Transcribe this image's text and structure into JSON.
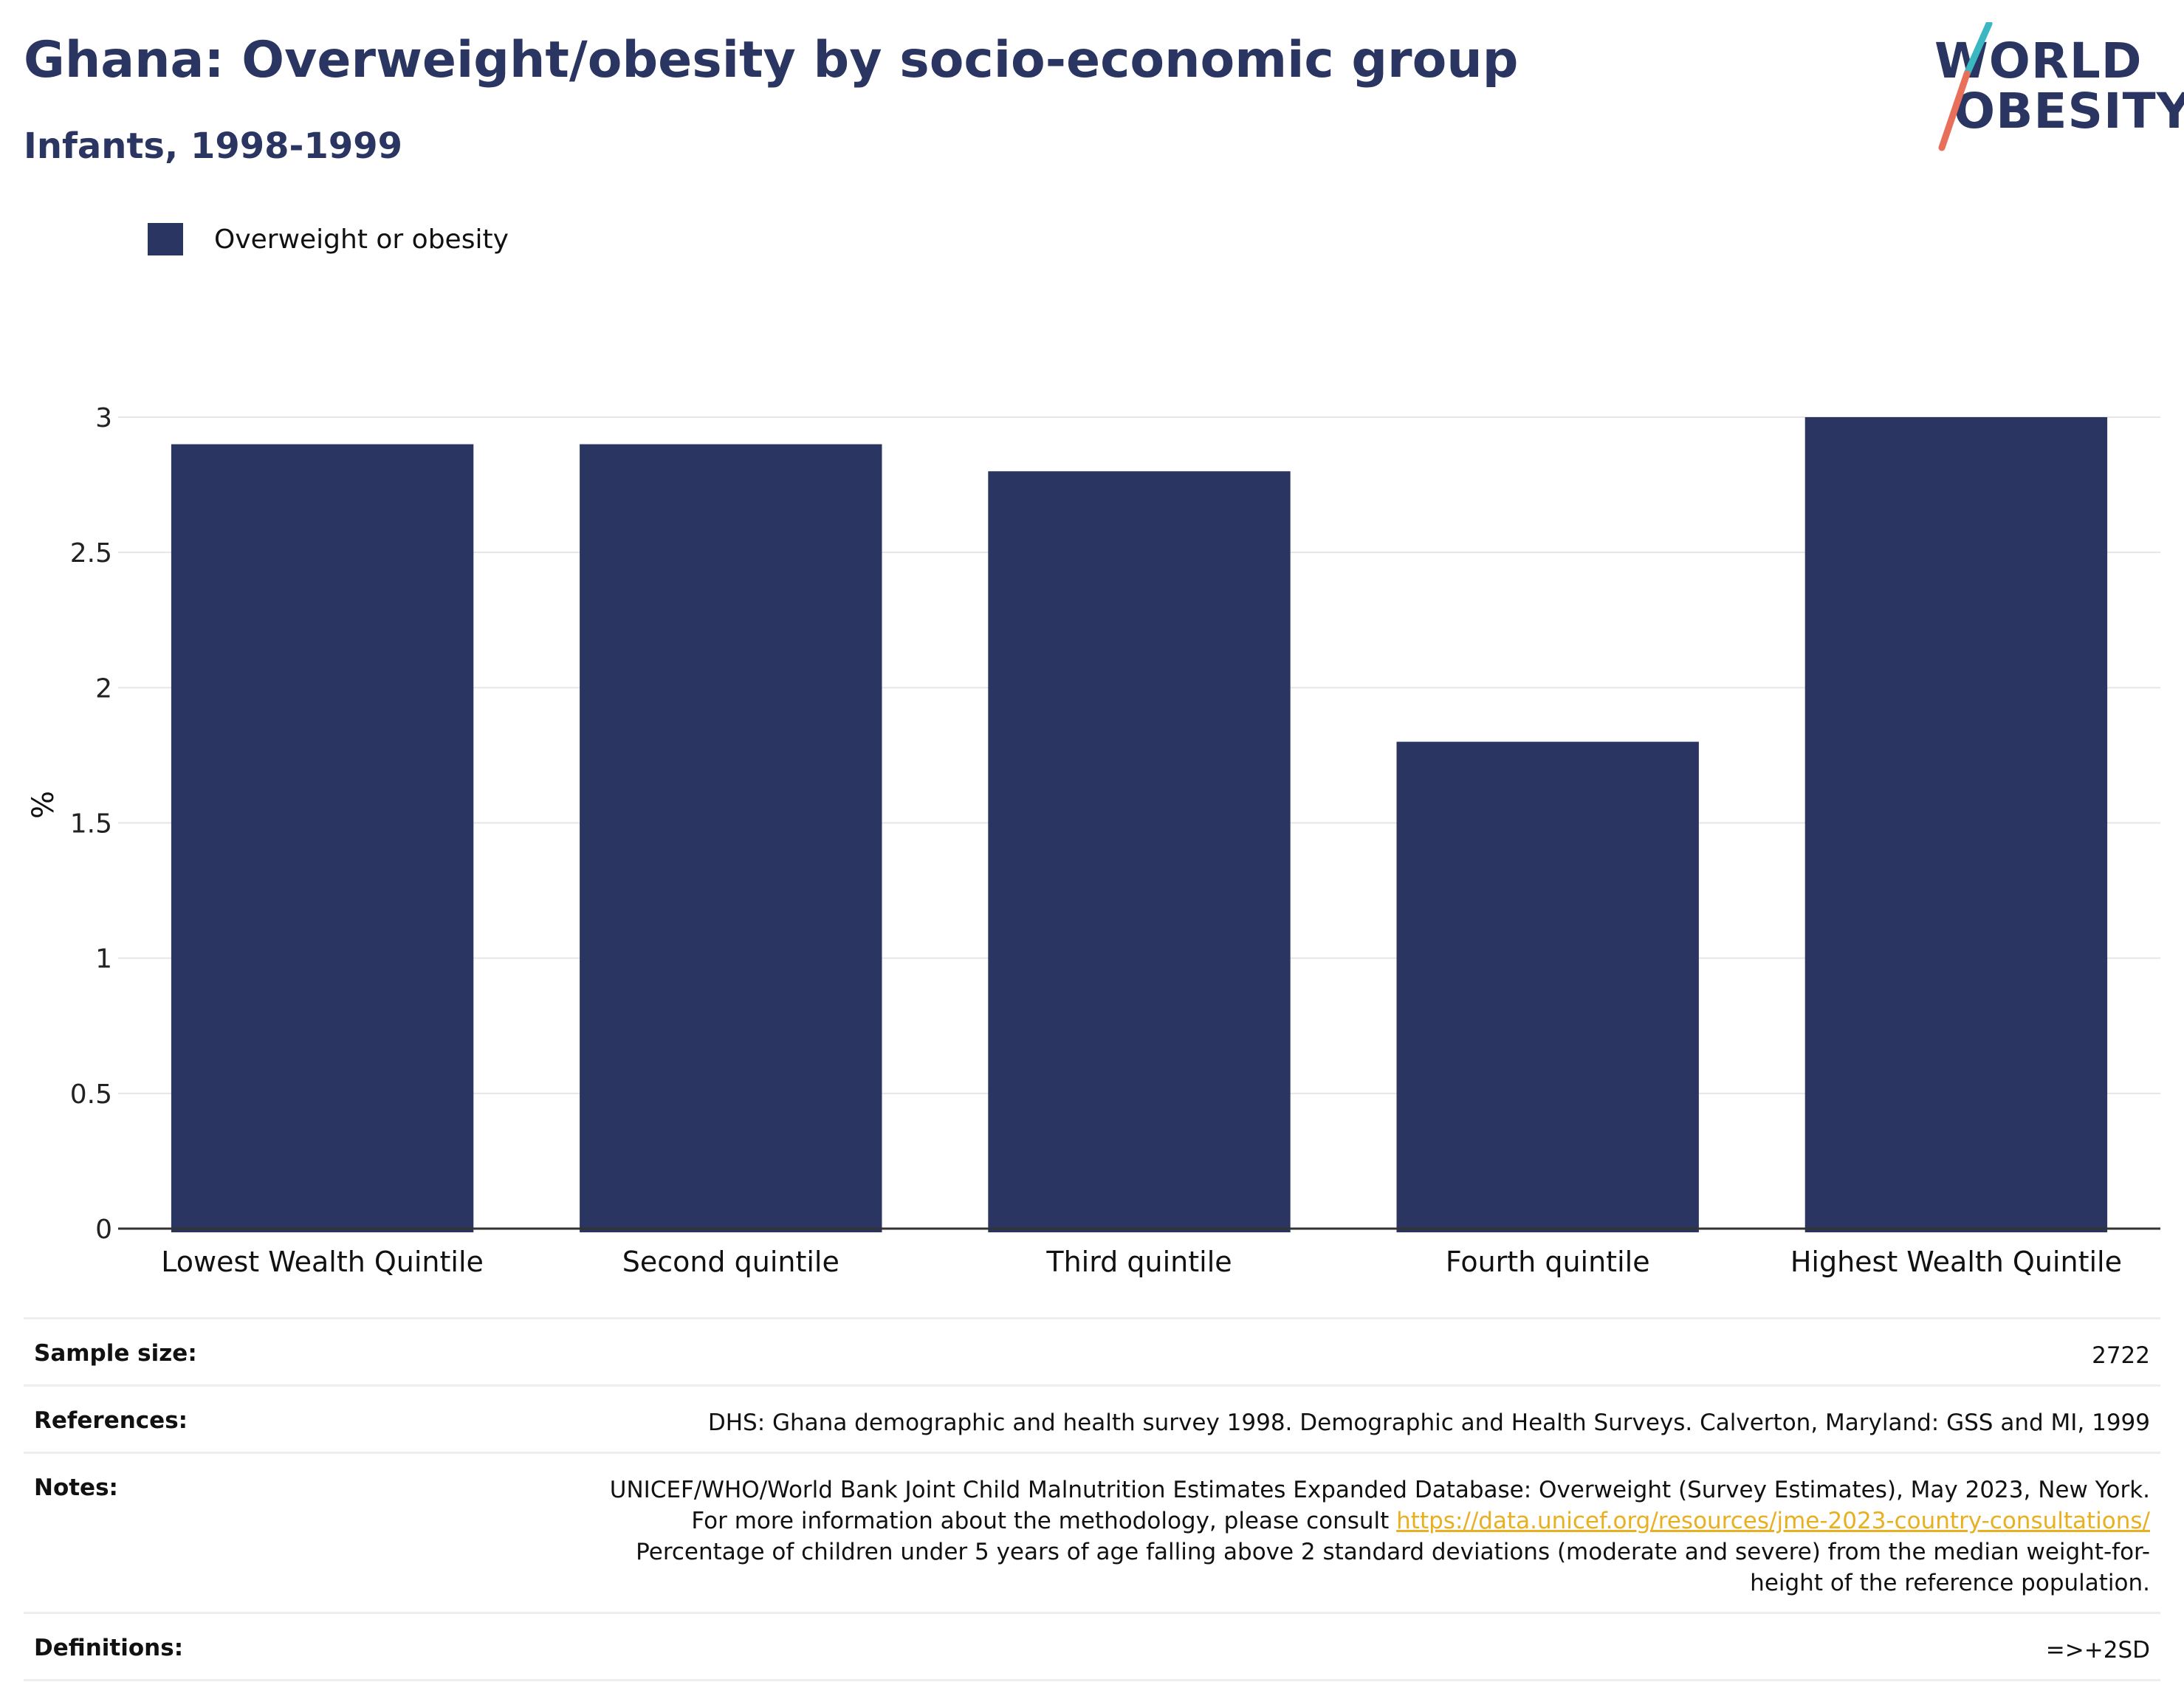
{
  "header": {
    "title": "Ghana: Overweight/obesity by socio-economic group",
    "subtitle": "Infants, 1998-1999"
  },
  "logo": {
    "line1": "WORLD",
    "line2": "OBESITY",
    "icon": "world-obesity-slash-logo",
    "colors": {
      "text": "#2a3561",
      "slash_top": "#3bb7c1",
      "slash_bottom": "#e8705a"
    }
  },
  "legend": {
    "items": [
      {
        "label": "Overweight or obesity",
        "color": "#2a3561"
      }
    ]
  },
  "chart_data": {
    "type": "bar",
    "categories": [
      "Lowest Wealth Quintile",
      "Second quintile",
      "Third quintile",
      "Fourth quintile",
      "Highest Wealth Quintile"
    ],
    "series": [
      {
        "name": "Overweight or obesity",
        "values": [
          2.9,
          2.9,
          2.8,
          1.8,
          3.0
        ],
        "color": "#2a3561"
      }
    ],
    "ylabel": "%",
    "ylim": [
      0,
      3
    ],
    "yticks": [
      "0",
      "0.5",
      "1",
      "1.5",
      "2",
      "2.5",
      "3"
    ],
    "grid": true,
    "legend_position": "top-left"
  },
  "info": {
    "sample_size_key": "Sample size:",
    "sample_size_value": "2722",
    "references_key": "References:",
    "references_value": "DHS: Ghana demographic and health survey 1998. Demographic and Health Surveys. Calverton, Maryland: GSS and MI, 1999",
    "notes_key": "Notes:",
    "notes_text_1": "UNICEF/WHO/World Bank Joint Child Malnutrition Estimates Expanded Database: Overweight (Survey Estimates), May 2023, New York. For more information about the methodology, please consult ",
    "notes_link": "https://data.unicef.org/resources/jme-2023-country-consultations/",
    "notes_text_2": "Percentage of children under 5 years of age falling above 2 standard deviations (moderate and severe) from the median weight-for-height of the reference population.",
    "definitions_key": "Definitions:",
    "definitions_value": "=>+2SD"
  }
}
